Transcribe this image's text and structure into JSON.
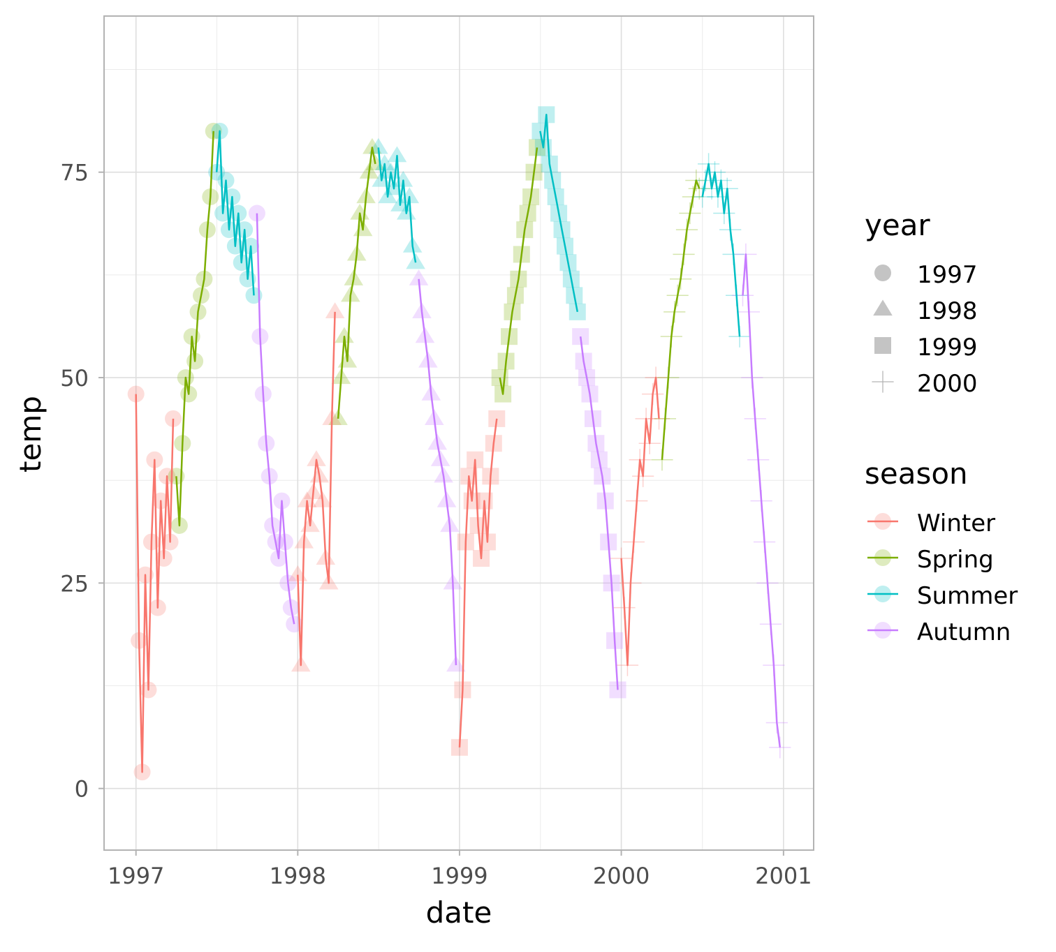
{
  "chart_data": {
    "type": "scatter",
    "title": "",
    "xlabel": "date",
    "ylabel": "temp",
    "x_ticks": [
      "1997",
      "1998",
      "1999",
      "2000",
      "2001"
    ],
    "y_ticks": [
      "0",
      "25",
      "50",
      "75"
    ],
    "xlim": [
      "1996-10-21",
      "2001-03-10"
    ],
    "ylim": [
      -7.5,
      94
    ],
    "grid": true,
    "legend_position": "right",
    "legends": [
      {
        "title": "year",
        "entries": [
          {
            "label": "1997",
            "shape": "circle"
          },
          {
            "label": "1998",
            "shape": "triangle"
          },
          {
            "label": "1999",
            "shape": "square"
          },
          {
            "label": "2000",
            "shape": "cross"
          }
        ]
      },
      {
        "title": "season",
        "entries": [
          {
            "label": "Winter",
            "color": "#F8766D"
          },
          {
            "label": "Spring",
            "color": "#7CAE00"
          },
          {
            "label": "Summer",
            "color": "#00BFC4"
          },
          {
            "label": "Autumn",
            "color": "#C77CFF"
          }
        ]
      }
    ],
    "series": [
      {
        "year": "1997",
        "season": "Winter",
        "shape": "circle",
        "color": "#F8766D",
        "points": [
          [
            "1997-01-01",
            48
          ],
          [
            "1997-01-08",
            18
          ],
          [
            "1997-01-15",
            2
          ],
          [
            "1997-01-22",
            26
          ],
          [
            "1997-01-29",
            12
          ],
          [
            "1997-02-05",
            30
          ],
          [
            "1997-02-12",
            40
          ],
          [
            "1997-02-19",
            22
          ],
          [
            "1997-02-26",
            35
          ],
          [
            "1997-03-05",
            28
          ],
          [
            "1997-03-12",
            38
          ],
          [
            "1997-03-19",
            30
          ],
          [
            "1997-03-26",
            45
          ]
        ]
      },
      {
        "year": "1997",
        "season": "Spring",
        "shape": "circle",
        "color": "#7CAE00",
        "points": [
          [
            "1997-04-02",
            38
          ],
          [
            "1997-04-09",
            32
          ],
          [
            "1997-04-16",
            42
          ],
          [
            "1997-04-23",
            50
          ],
          [
            "1997-04-30",
            48
          ],
          [
            "1997-05-07",
            55
          ],
          [
            "1997-05-14",
            52
          ],
          [
            "1997-05-21",
            58
          ],
          [
            "1997-05-28",
            60
          ],
          [
            "1997-06-04",
            62
          ],
          [
            "1997-06-11",
            68
          ],
          [
            "1997-06-18",
            72
          ],
          [
            "1997-06-25",
            80
          ]
        ]
      },
      {
        "year": "1997",
        "season": "Summer",
        "shape": "circle",
        "color": "#00BFC4",
        "points": [
          [
            "1997-07-02",
            75
          ],
          [
            "1997-07-09",
            80
          ],
          [
            "1997-07-16",
            70
          ],
          [
            "1997-07-23",
            74
          ],
          [
            "1997-07-30",
            68
          ],
          [
            "1997-08-06",
            72
          ],
          [
            "1997-08-13",
            66
          ],
          [
            "1997-08-20",
            70
          ],
          [
            "1997-08-27",
            64
          ],
          [
            "1997-09-03",
            68
          ],
          [
            "1997-09-10",
            62
          ],
          [
            "1997-09-17",
            66
          ],
          [
            "1997-09-24",
            60
          ]
        ]
      },
      {
        "year": "1997",
        "season": "Autumn",
        "shape": "circle",
        "color": "#C77CFF",
        "points": [
          [
            "1997-10-01",
            70
          ],
          [
            "1997-10-08",
            55
          ],
          [
            "1997-10-15",
            48
          ],
          [
            "1997-10-22",
            42
          ],
          [
            "1997-10-29",
            38
          ],
          [
            "1997-11-05",
            32
          ],
          [
            "1997-11-12",
            30
          ],
          [
            "1997-11-19",
            28
          ],
          [
            "1997-11-26",
            35
          ],
          [
            "1997-12-03",
            30
          ],
          [
            "1997-12-10",
            25
          ],
          [
            "1997-12-17",
            22
          ],
          [
            "1997-12-24",
            20
          ]
        ]
      },
      {
        "year": "1998",
        "season": "Winter",
        "shape": "triangle",
        "color": "#F8766D",
        "points": [
          [
            "1998-01-01",
            26
          ],
          [
            "1998-01-08",
            15
          ],
          [
            "1998-01-15",
            30
          ],
          [
            "1998-01-22",
            35
          ],
          [
            "1998-01-29",
            32
          ],
          [
            "1998-02-05",
            36
          ],
          [
            "1998-02-12",
            40
          ],
          [
            "1998-02-19",
            38
          ],
          [
            "1998-02-26",
            35
          ],
          [
            "1998-03-05",
            28
          ],
          [
            "1998-03-12",
            25
          ],
          [
            "1998-03-19",
            45
          ],
          [
            "1998-03-26",
            58
          ]
        ]
      },
      {
        "year": "1998",
        "season": "Spring",
        "shape": "triangle",
        "color": "#7CAE00",
        "points": [
          [
            "1998-04-02",
            45
          ],
          [
            "1998-04-09",
            50
          ],
          [
            "1998-04-16",
            55
          ],
          [
            "1998-04-23",
            52
          ],
          [
            "1998-04-30",
            60
          ],
          [
            "1998-05-07",
            62
          ],
          [
            "1998-05-14",
            65
          ],
          [
            "1998-05-21",
            70
          ],
          [
            "1998-05-28",
            68
          ],
          [
            "1998-06-04",
            72
          ],
          [
            "1998-06-11",
            75
          ],
          [
            "1998-06-18",
            78
          ],
          [
            "1998-06-25",
            76
          ]
        ]
      },
      {
        "year": "1998",
        "season": "Summer",
        "shape": "triangle",
        "color": "#00BFC4",
        "points": [
          [
            "1998-07-02",
            78
          ],
          [
            "1998-07-09",
            74
          ],
          [
            "1998-07-16",
            76
          ],
          [
            "1998-07-23",
            72
          ],
          [
            "1998-07-30",
            75
          ],
          [
            "1998-08-06",
            73
          ],
          [
            "1998-08-13",
            77
          ],
          [
            "1998-08-20",
            71
          ],
          [
            "1998-08-27",
            74
          ],
          [
            "1998-09-03",
            70
          ],
          [
            "1998-09-10",
            72
          ],
          [
            "1998-09-17",
            66
          ],
          [
            "1998-09-24",
            64
          ]
        ]
      },
      {
        "year": "1998",
        "season": "Autumn",
        "shape": "triangle",
        "color": "#C77CFF",
        "points": [
          [
            "1998-10-01",
            62
          ],
          [
            "1998-10-08",
            58
          ],
          [
            "1998-10-15",
            55
          ],
          [
            "1998-10-22",
            52
          ],
          [
            "1998-10-29",
            48
          ],
          [
            "1998-11-05",
            45
          ],
          [
            "1998-11-12",
            42
          ],
          [
            "1998-11-19",
            40
          ],
          [
            "1998-11-26",
            38
          ],
          [
            "1998-12-03",
            35
          ],
          [
            "1998-12-10",
            32
          ],
          [
            "1998-12-17",
            25
          ],
          [
            "1998-12-24",
            15
          ]
        ]
      },
      {
        "year": "1999",
        "season": "Winter",
        "shape": "square",
        "color": "#F8766D",
        "points": [
          [
            "1999-01-01",
            5
          ],
          [
            "1999-01-08",
            12
          ],
          [
            "1999-01-15",
            30
          ],
          [
            "1999-01-22",
            38
          ],
          [
            "1999-01-29",
            35
          ],
          [
            "1999-02-05",
            40
          ],
          [
            "1999-02-12",
            32
          ],
          [
            "1999-02-19",
            28
          ],
          [
            "1999-02-26",
            35
          ],
          [
            "1999-03-05",
            30
          ],
          [
            "1999-03-12",
            38
          ],
          [
            "1999-03-19",
            42
          ],
          [
            "1999-03-26",
            45
          ]
        ]
      },
      {
        "year": "1999",
        "season": "Spring",
        "shape": "square",
        "color": "#7CAE00",
        "points": [
          [
            "1999-04-02",
            50
          ],
          [
            "1999-04-09",
            48
          ],
          [
            "1999-04-16",
            52
          ],
          [
            "1999-04-23",
            55
          ],
          [
            "1999-04-30",
            58
          ],
          [
            "1999-05-07",
            60
          ],
          [
            "1999-05-14",
            62
          ],
          [
            "1999-05-21",
            65
          ],
          [
            "1999-05-28",
            68
          ],
          [
            "1999-06-04",
            70
          ],
          [
            "1999-06-11",
            72
          ],
          [
            "1999-06-18",
            75
          ],
          [
            "1999-06-25",
            78
          ]
        ]
      },
      {
        "year": "1999",
        "season": "Summer",
        "shape": "square",
        "color": "#00BFC4",
        "points": [
          [
            "1999-07-02",
            80
          ],
          [
            "1999-07-09",
            78
          ],
          [
            "1999-07-16",
            82
          ],
          [
            "1999-07-23",
            76
          ],
          [
            "1999-07-30",
            74
          ],
          [
            "1999-08-06",
            72
          ],
          [
            "1999-08-13",
            70
          ],
          [
            "1999-08-20",
            68
          ],
          [
            "1999-08-27",
            66
          ],
          [
            "1999-09-03",
            64
          ],
          [
            "1999-09-10",
            62
          ],
          [
            "1999-09-17",
            60
          ],
          [
            "1999-09-24",
            58
          ]
        ]
      },
      {
        "year": "1999",
        "season": "Autumn",
        "shape": "square",
        "color": "#C77CFF",
        "points": [
          [
            "1999-10-01",
            55
          ],
          [
            "1999-10-08",
            52
          ],
          [
            "1999-10-15",
            50
          ],
          [
            "1999-10-22",
            48
          ],
          [
            "1999-10-29",
            45
          ],
          [
            "1999-11-05",
            42
          ],
          [
            "1999-11-12",
            40
          ],
          [
            "1999-11-19",
            38
          ],
          [
            "1999-11-26",
            35
          ],
          [
            "1999-12-03",
            30
          ],
          [
            "1999-12-10",
            25
          ],
          [
            "1999-12-17",
            18
          ],
          [
            "1999-12-24",
            12
          ]
        ]
      },
      {
        "year": "2000",
        "season": "Winter",
        "shape": "cross",
        "color": "#F8766D",
        "points": [
          [
            "2000-01-01",
            28
          ],
          [
            "2000-01-08",
            22
          ],
          [
            "2000-01-15",
            15
          ],
          [
            "2000-01-22",
            25
          ],
          [
            "2000-01-29",
            30
          ],
          [
            "2000-02-05",
            35
          ],
          [
            "2000-02-12",
            40
          ],
          [
            "2000-02-19",
            38
          ],
          [
            "2000-02-26",
            45
          ],
          [
            "2000-03-05",
            42
          ],
          [
            "2000-03-12",
            48
          ],
          [
            "2000-03-19",
            50
          ],
          [
            "2000-03-26",
            45
          ]
        ]
      },
      {
        "year": "2000",
        "season": "Spring",
        "shape": "cross",
        "color": "#7CAE00",
        "points": [
          [
            "2000-04-02",
            40
          ],
          [
            "2000-04-09",
            45
          ],
          [
            "2000-04-16",
            50
          ],
          [
            "2000-04-23",
            55
          ],
          [
            "2000-04-30",
            58
          ],
          [
            "2000-05-07",
            60
          ],
          [
            "2000-05-14",
            62
          ],
          [
            "2000-05-21",
            65
          ],
          [
            "2000-05-28",
            68
          ],
          [
            "2000-06-04",
            70
          ],
          [
            "2000-06-11",
            72
          ],
          [
            "2000-06-18",
            74
          ],
          [
            "2000-06-25",
            73
          ]
        ]
      },
      {
        "year": "2000",
        "season": "Summer",
        "shape": "cross",
        "color": "#00BFC4",
        "points": [
          [
            "2000-07-02",
            72
          ],
          [
            "2000-07-09",
            74
          ],
          [
            "2000-07-16",
            76
          ],
          [
            "2000-07-23",
            73
          ],
          [
            "2000-07-30",
            75
          ],
          [
            "2000-08-06",
            72
          ],
          [
            "2000-08-13",
            74
          ],
          [
            "2000-08-20",
            70
          ],
          [
            "2000-08-27",
            73
          ],
          [
            "2000-09-03",
            68
          ],
          [
            "2000-09-10",
            65
          ],
          [
            "2000-09-17",
            60
          ],
          [
            "2000-09-24",
            55
          ]
        ]
      },
      {
        "year": "2000",
        "season": "Autumn",
        "shape": "cross",
        "color": "#C77CFF",
        "points": [
          [
            "2000-10-01",
            60
          ],
          [
            "2000-10-08",
            65
          ],
          [
            "2000-10-15",
            58
          ],
          [
            "2000-10-22",
            50
          ],
          [
            "2000-10-29",
            45
          ],
          [
            "2000-11-05",
            40
          ],
          [
            "2000-11-12",
            35
          ],
          [
            "2000-11-19",
            30
          ],
          [
            "2000-11-26",
            25
          ],
          [
            "2000-12-03",
            20
          ],
          [
            "2000-12-10",
            15
          ],
          [
            "2000-12-17",
            8
          ],
          [
            "2000-12-24",
            5
          ]
        ]
      }
    ]
  }
}
